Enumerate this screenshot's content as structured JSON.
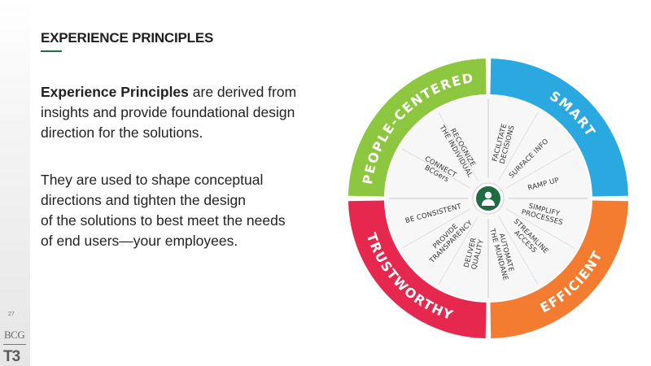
{
  "header": {
    "title": "EXPERIENCE PRINCIPLES"
  },
  "intro": {
    "lead_bold": "Experience Principles",
    "lead_rest": " are derived from insights and provide foundational design direction for the solutions.",
    "para2_line1": "They are used to shape conceptual",
    "para2_line2": "directions and tighten the design",
    "para2_line3": "of the solutions to best meet the needs",
    "para2_line4": "of end users—your employees."
  },
  "footer": {
    "page_number": "27",
    "logo_text": "BCG",
    "logo_mark": "T3"
  },
  "wheel": {
    "center_icon": "person-icon",
    "segments": [
      {
        "name": "PEOPLE-CENTERED",
        "color": "#8dc63f",
        "items": [
          [
            "RECOGNIZE",
            "THE INDIVIDUAL"
          ],
          [
            "CONNECT",
            "BCGers"
          ]
        ]
      },
      {
        "name": "SMART",
        "color": "#29a9e0",
        "items": [
          [
            "FACILITATE",
            "DECISIONS"
          ],
          [
            "SURFACE INFO"
          ],
          [
            "RAMP UP"
          ]
        ]
      },
      {
        "name": "EFFICIENT",
        "color": "#f47c30",
        "items": [
          [
            "SIMPLIFY",
            "PROCESSES"
          ],
          [
            "STREAMLINE",
            "ACCESS"
          ],
          [
            "AUTOMATE",
            "THE MUNDANE"
          ]
        ]
      },
      {
        "name": "TRUSTWORTHY",
        "color": "#e7284e",
        "items": [
          [
            "DELIVER",
            "QUALITY"
          ],
          [
            "PROVIDE",
            "TRANSPARENCY"
          ],
          [
            "BE CONSISTENT"
          ]
        ]
      }
    ],
    "center_color": "#1f6b43"
  }
}
